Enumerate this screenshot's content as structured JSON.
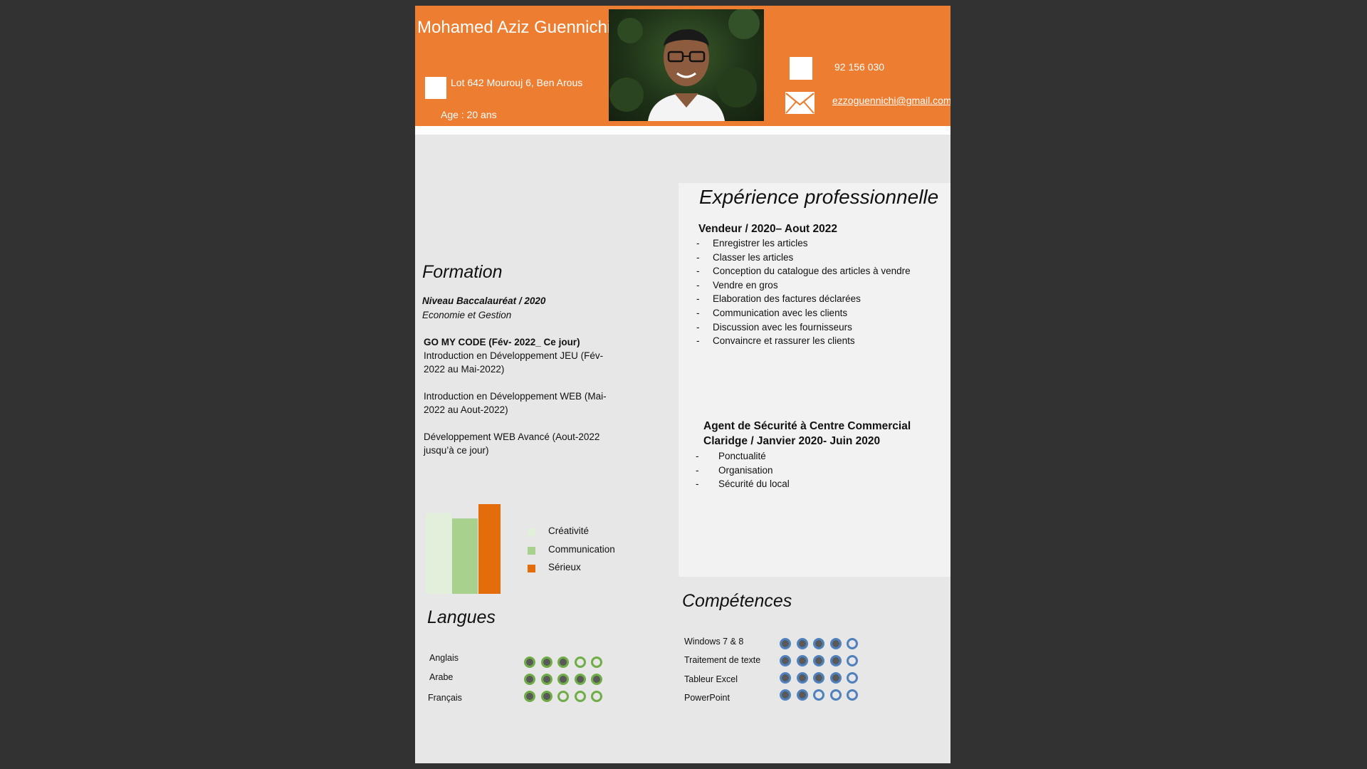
{
  "header": {
    "name": "Mohamed Aziz Guennichi",
    "address": "Lot 642 Mourouj 6, Ben Arous",
    "age": "Age : 20 ans",
    "phone": "92 156 030",
    "email": "ezzoguennichi@gmail.com"
  },
  "experience": {
    "title": "Expérience professionnelle",
    "jobs": [
      {
        "title_lines": [
          "Vendeur / 2020– Aout 2022"
        ],
        "tasks": [
          "Enregistrer les articles",
          "Classer les articles",
          "Conception du catalogue des articles à vendre",
          "Vendre en gros",
          "Elaboration des factures déclarées",
          "Communication avec les clients",
          "Discussion avec les fournisseurs",
          "Convaincre et rassurer les clients"
        ]
      },
      {
        "title_lines": [
          "Agent de Sécurité à Centre Commercial",
          "Claridge / Janvier 2020- Juin 2020"
        ],
        "tasks": [
          "Ponctualité",
          "Organisation",
          "Sécurité du local"
        ]
      }
    ]
  },
  "formation": {
    "title": "Formation",
    "entries": [
      {
        "heading": "Niveau Baccalauréat / 2020",
        "sub": "Economie et Gestion"
      },
      {
        "heading": "GO MY CODE (Fév- 2022_ Ce jour)"
      }
    ],
    "courses": [
      [
        "Introduction en Développement JEU (Fév-",
        "2022 au Mai-2022)"
      ],
      [
        "Introduction en Développement WEB (Mai-",
        "2022 au Aout-2022)"
      ],
      [
        "Développement WEB Avancé (Aout-2022",
        "jusqu’à ce jour)"
      ]
    ]
  },
  "chart_data": {
    "type": "bar",
    "categories": [
      "Créativité",
      "Communication",
      "Sérieux"
    ],
    "values": [
      90,
      84,
      100
    ],
    "ylim": [
      0,
      100
    ],
    "colors": [
      "#e2efda",
      "#a9d18e",
      "#e46c0a"
    ],
    "legend_position": "right",
    "grid": false
  },
  "languages": {
    "title": "Langues",
    "filled_color": "#595959",
    "ring_color": "#70ad47",
    "items": [
      {
        "label": "Anglais",
        "level": 3,
        "max": 5
      },
      {
        "label": "Arabe",
        "level": 5,
        "max": 5
      },
      {
        "label": "Français",
        "level": 2,
        "max": 5
      }
    ]
  },
  "skills": {
    "title": "Compétences",
    "filled_color": "#595959",
    "ring_color": "#4f81bd",
    "items": [
      {
        "label": "Windows 7 & 8",
        "level": 4,
        "max": 5
      },
      {
        "label": "Traitement de texte",
        "level": 4,
        "max": 5
      },
      {
        "label": "Tableur Excel",
        "level": 4,
        "max": 5
      },
      {
        "label": "PowerPoint",
        "level": 2,
        "max": 5
      }
    ]
  },
  "colors": {
    "accent": "#ed7d31",
    "background": "#323232",
    "page": "#e7e7e7"
  },
  "icons": [
    "home-icon",
    "phone-icon",
    "envelope-icon"
  ]
}
